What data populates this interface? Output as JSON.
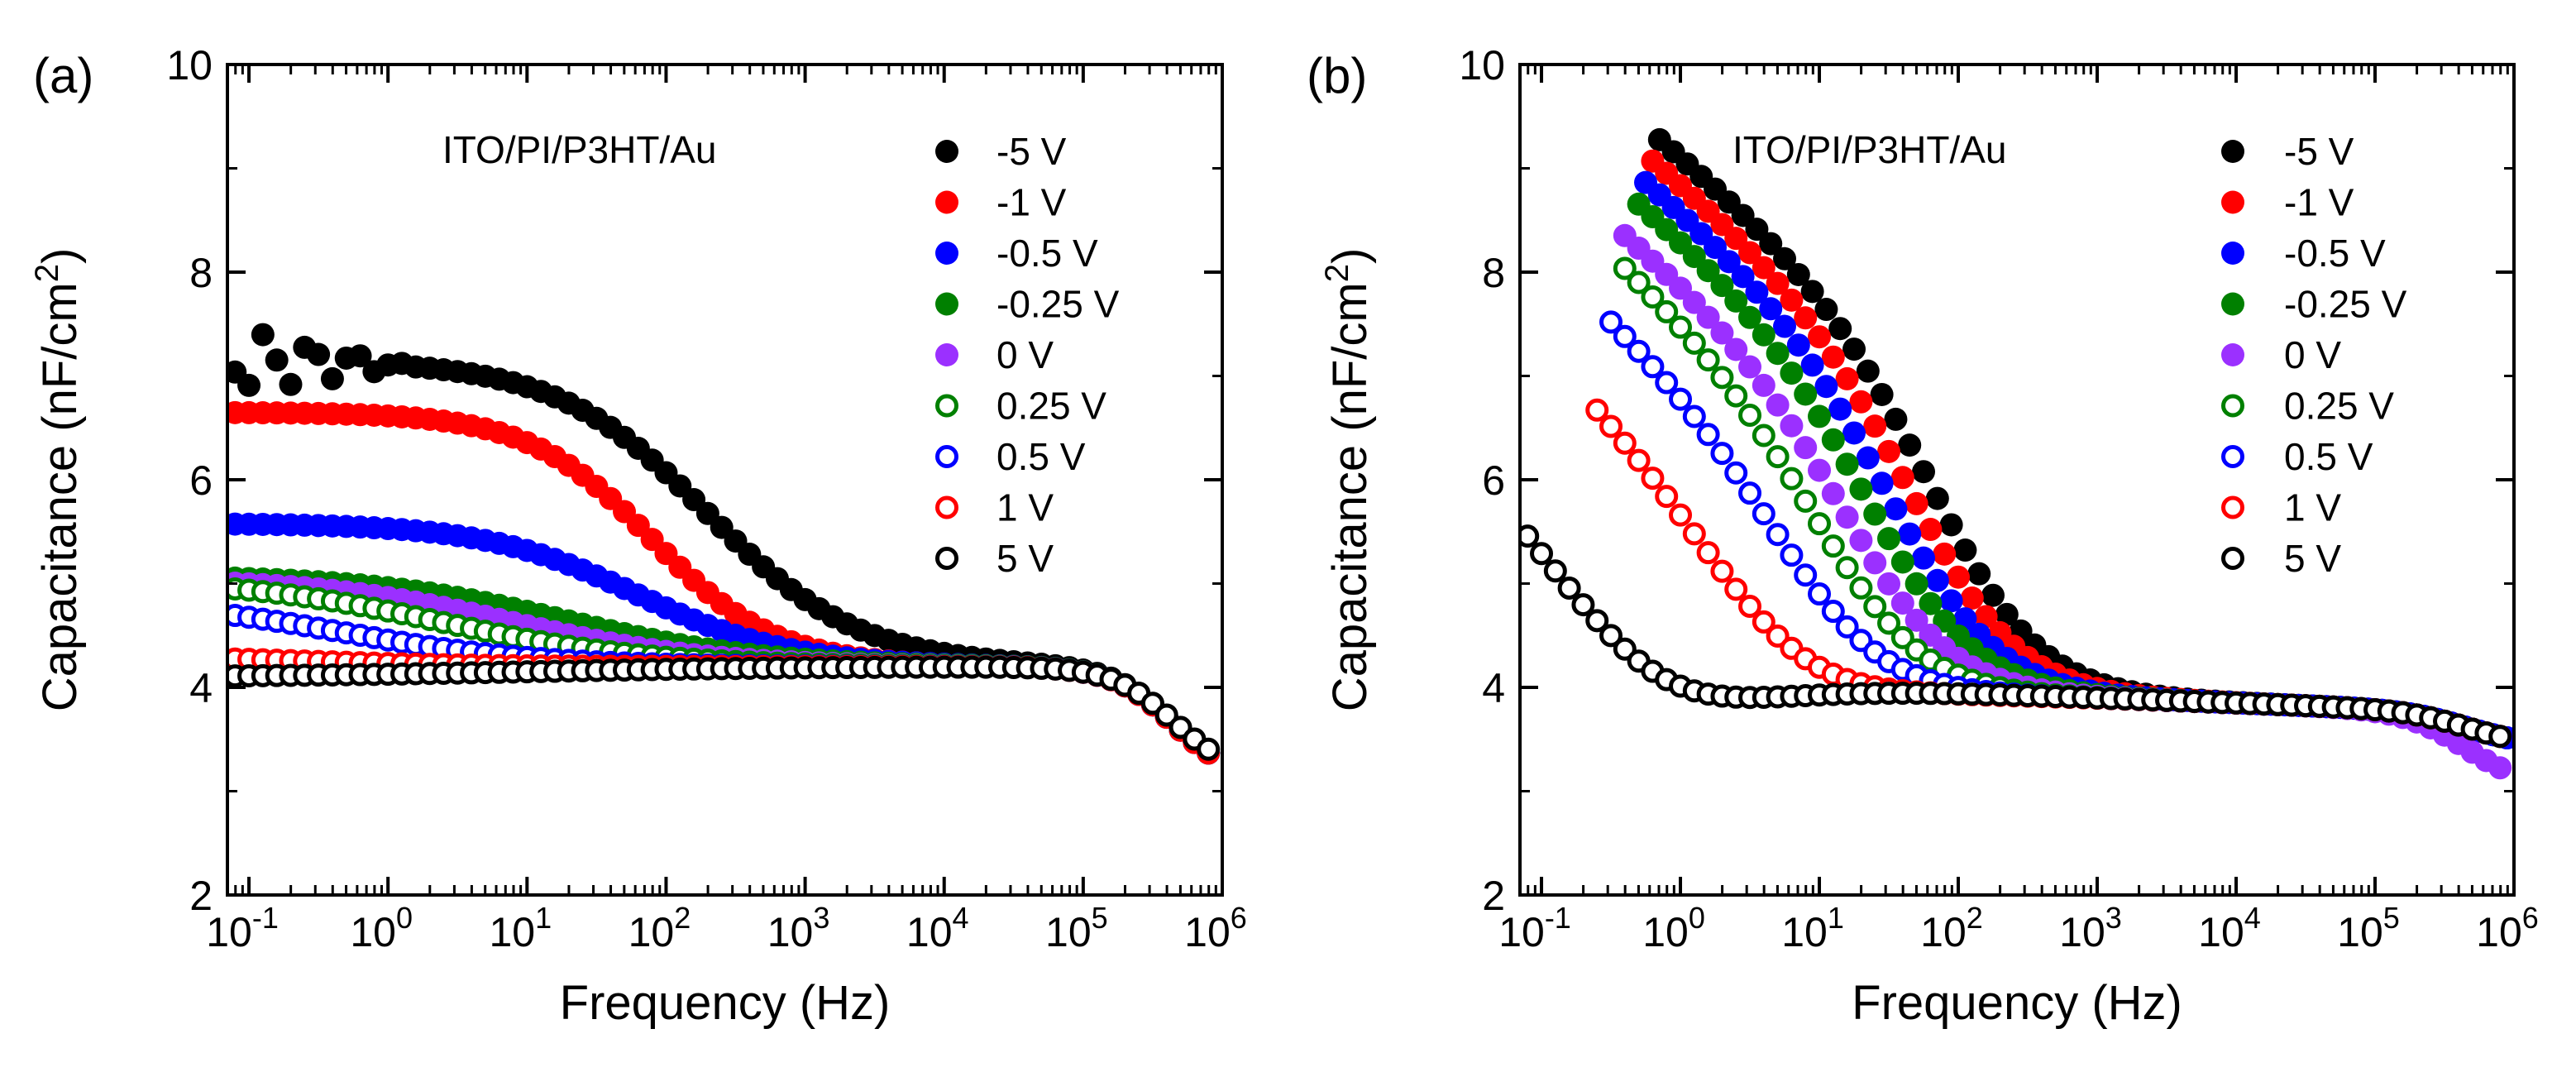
{
  "chart_data": [
    {
      "type": "scatter",
      "panel_label": "(a)",
      "device": "ITO/PI/P3HT/Au",
      "xlabel": "Frequency (Hz)",
      "ylabel_main": "Capacitance (nF/cm",
      "ylabel_sup": "2",
      "ylabel_close": ")",
      "xscale": "log",
      "xlim": [
        0.07,
        1000000
      ],
      "ylim": [
        2,
        10
      ],
      "yticks": [
        "2",
        "4",
        "6",
        "8",
        "10"
      ],
      "xticks": [
        {
          "base": "10",
          "exp": "-1"
        },
        {
          "base": "10",
          "exp": "0"
        },
        {
          "base": "10",
          "exp": "1"
        },
        {
          "base": "10",
          "exp": "2"
        },
        {
          "base": "10",
          "exp": "3"
        },
        {
          "base": "10",
          "exp": "4"
        },
        {
          "base": "10",
          "exp": "5"
        },
        {
          "base": "10",
          "exp": "6"
        }
      ],
      "legend_position": "top-right",
      "series": [
        {
          "name": "-5 V",
          "color": "#000000",
          "filled": true,
          "low": 3.1,
          "plateau": 7.15,
          "logfc": 2.3,
          "w": 0.55,
          "noise": 0.35
        },
        {
          "name": "-1 V",
          "color": "#ff0000",
          "filled": true,
          "low": 3.1,
          "plateau": 6.65,
          "logfc": 1.9,
          "w": 0.45
        },
        {
          "name": "-0.5 V",
          "color": "#0000ff",
          "filled": true,
          "low": 3.1,
          "plateau": 5.58,
          "logfc": 1.8,
          "w": 0.55
        },
        {
          "name": "-0.25 V",
          "color": "#008000",
          "filled": true,
          "low": 3.1,
          "plateau": 5.08,
          "logfc": 1.3,
          "w": 0.7
        },
        {
          "name": "0 V",
          "color": "#9b30ff",
          "filled": true,
          "low": 3.1,
          "plateau": 5.05,
          "logfc": 0.9,
          "w": 0.7
        },
        {
          "name": "0.25 V",
          "color": "#008000",
          "filled": false,
          "low": 3.1,
          "plateau": 5.05,
          "logfc": 0.4,
          "w": 0.75
        },
        {
          "name": "0.5 V",
          "color": "#0000ff",
          "filled": false,
          "low": 3.1,
          "plateau": 4.85,
          "logfc": -0.3,
          "w": 0.7
        },
        {
          "name": "1 V",
          "color": "#ff0000",
          "filled": false,
          "low": 3.1,
          "plateau": 4.3,
          "logfc": -0.5,
          "w": 0.6
        },
        {
          "name": "5 V",
          "color": "#000000",
          "filled": false,
          "low": 3.15,
          "plateau": 4.1,
          "logfc": 1.0,
          "w": 1.0
        }
      ]
    },
    {
      "type": "scatter",
      "panel_label": "(b)",
      "device": "ITO/PI/P3HT/Au",
      "xlabel": "Frequency (Hz)",
      "ylabel_main": "Capacitance (nF/cm",
      "ylabel_sup": "2",
      "ylabel_close": ")",
      "xscale": "log",
      "xlim": [
        0.07,
        1000000
      ],
      "ylim": [
        2,
        10
      ],
      "yticks": [
        "2",
        "4",
        "6",
        "8",
        "10"
      ],
      "xticks": [
        {
          "base": "10",
          "exp": "-1"
        },
        {
          "base": "10",
          "exp": "0"
        },
        {
          "base": "10",
          "exp": "1"
        },
        {
          "base": "10",
          "exp": "2"
        },
        {
          "base": "10",
          "exp": "3"
        },
        {
          "base": "10",
          "exp": "4"
        },
        {
          "base": "10",
          "exp": "5"
        },
        {
          "base": "10",
          "exp": "6"
        }
      ],
      "legend_position": "top-right",
      "series": [
        {
          "name": "-5 V",
          "color": "#000000",
          "filled": true,
          "low": 3.5,
          "start": -0.15,
          "a": 9.3,
          "b": 1.1,
          "e": 2.0,
          "w": 0.4
        },
        {
          "name": "-1 V",
          "color": "#ff0000",
          "filled": true,
          "low": 3.5,
          "start": -0.2,
          "a": 9.1,
          "b": 1.1,
          "e": 1.85,
          "w": 0.4
        },
        {
          "name": "-0.5 V",
          "color": "#0000ff",
          "filled": true,
          "low": 3.5,
          "start": -0.25,
          "a": 8.9,
          "b": 1.1,
          "e": 1.7,
          "w": 0.4
        },
        {
          "name": "-0.25 V",
          "color": "#008000",
          "filled": true,
          "low": 3.5,
          "start": -0.3,
          "a": 8.7,
          "b": 1.1,
          "e": 1.55,
          "w": 0.4
        },
        {
          "name": "0 V",
          "color": "#9b30ff",
          "filled": true,
          "low": 3.1,
          "start": -0.4,
          "a": 8.4,
          "b": 1.1,
          "e": 1.4,
          "w": 0.4
        },
        {
          "name": "0.25 V",
          "color": "#008000",
          "filled": false,
          "low": 3.5,
          "start": -0.4,
          "a": 8.1,
          "b": 1.2,
          "e": 1.25,
          "w": 0.4
        },
        {
          "name": "0.5 V",
          "color": "#0000ff",
          "filled": false,
          "low": 3.5,
          "start": -0.5,
          "a": 7.6,
          "b": 1.2,
          "e": 1.0,
          "w": 0.4
        },
        {
          "name": "1 V",
          "color": "#ff0000",
          "filled": false,
          "low": 3.5,
          "start": -0.6,
          "a": 6.8,
          "b": 1.3,
          "e": 0.6,
          "w": 0.4
        },
        {
          "name": "5 V",
          "color": "#000000",
          "filled": false,
          "low": 3.5,
          "start": -1.1,
          "a": 5.6,
          "b": 1.5,
          "e": -0.2,
          "w": 0.4
        }
      ]
    }
  ]
}
